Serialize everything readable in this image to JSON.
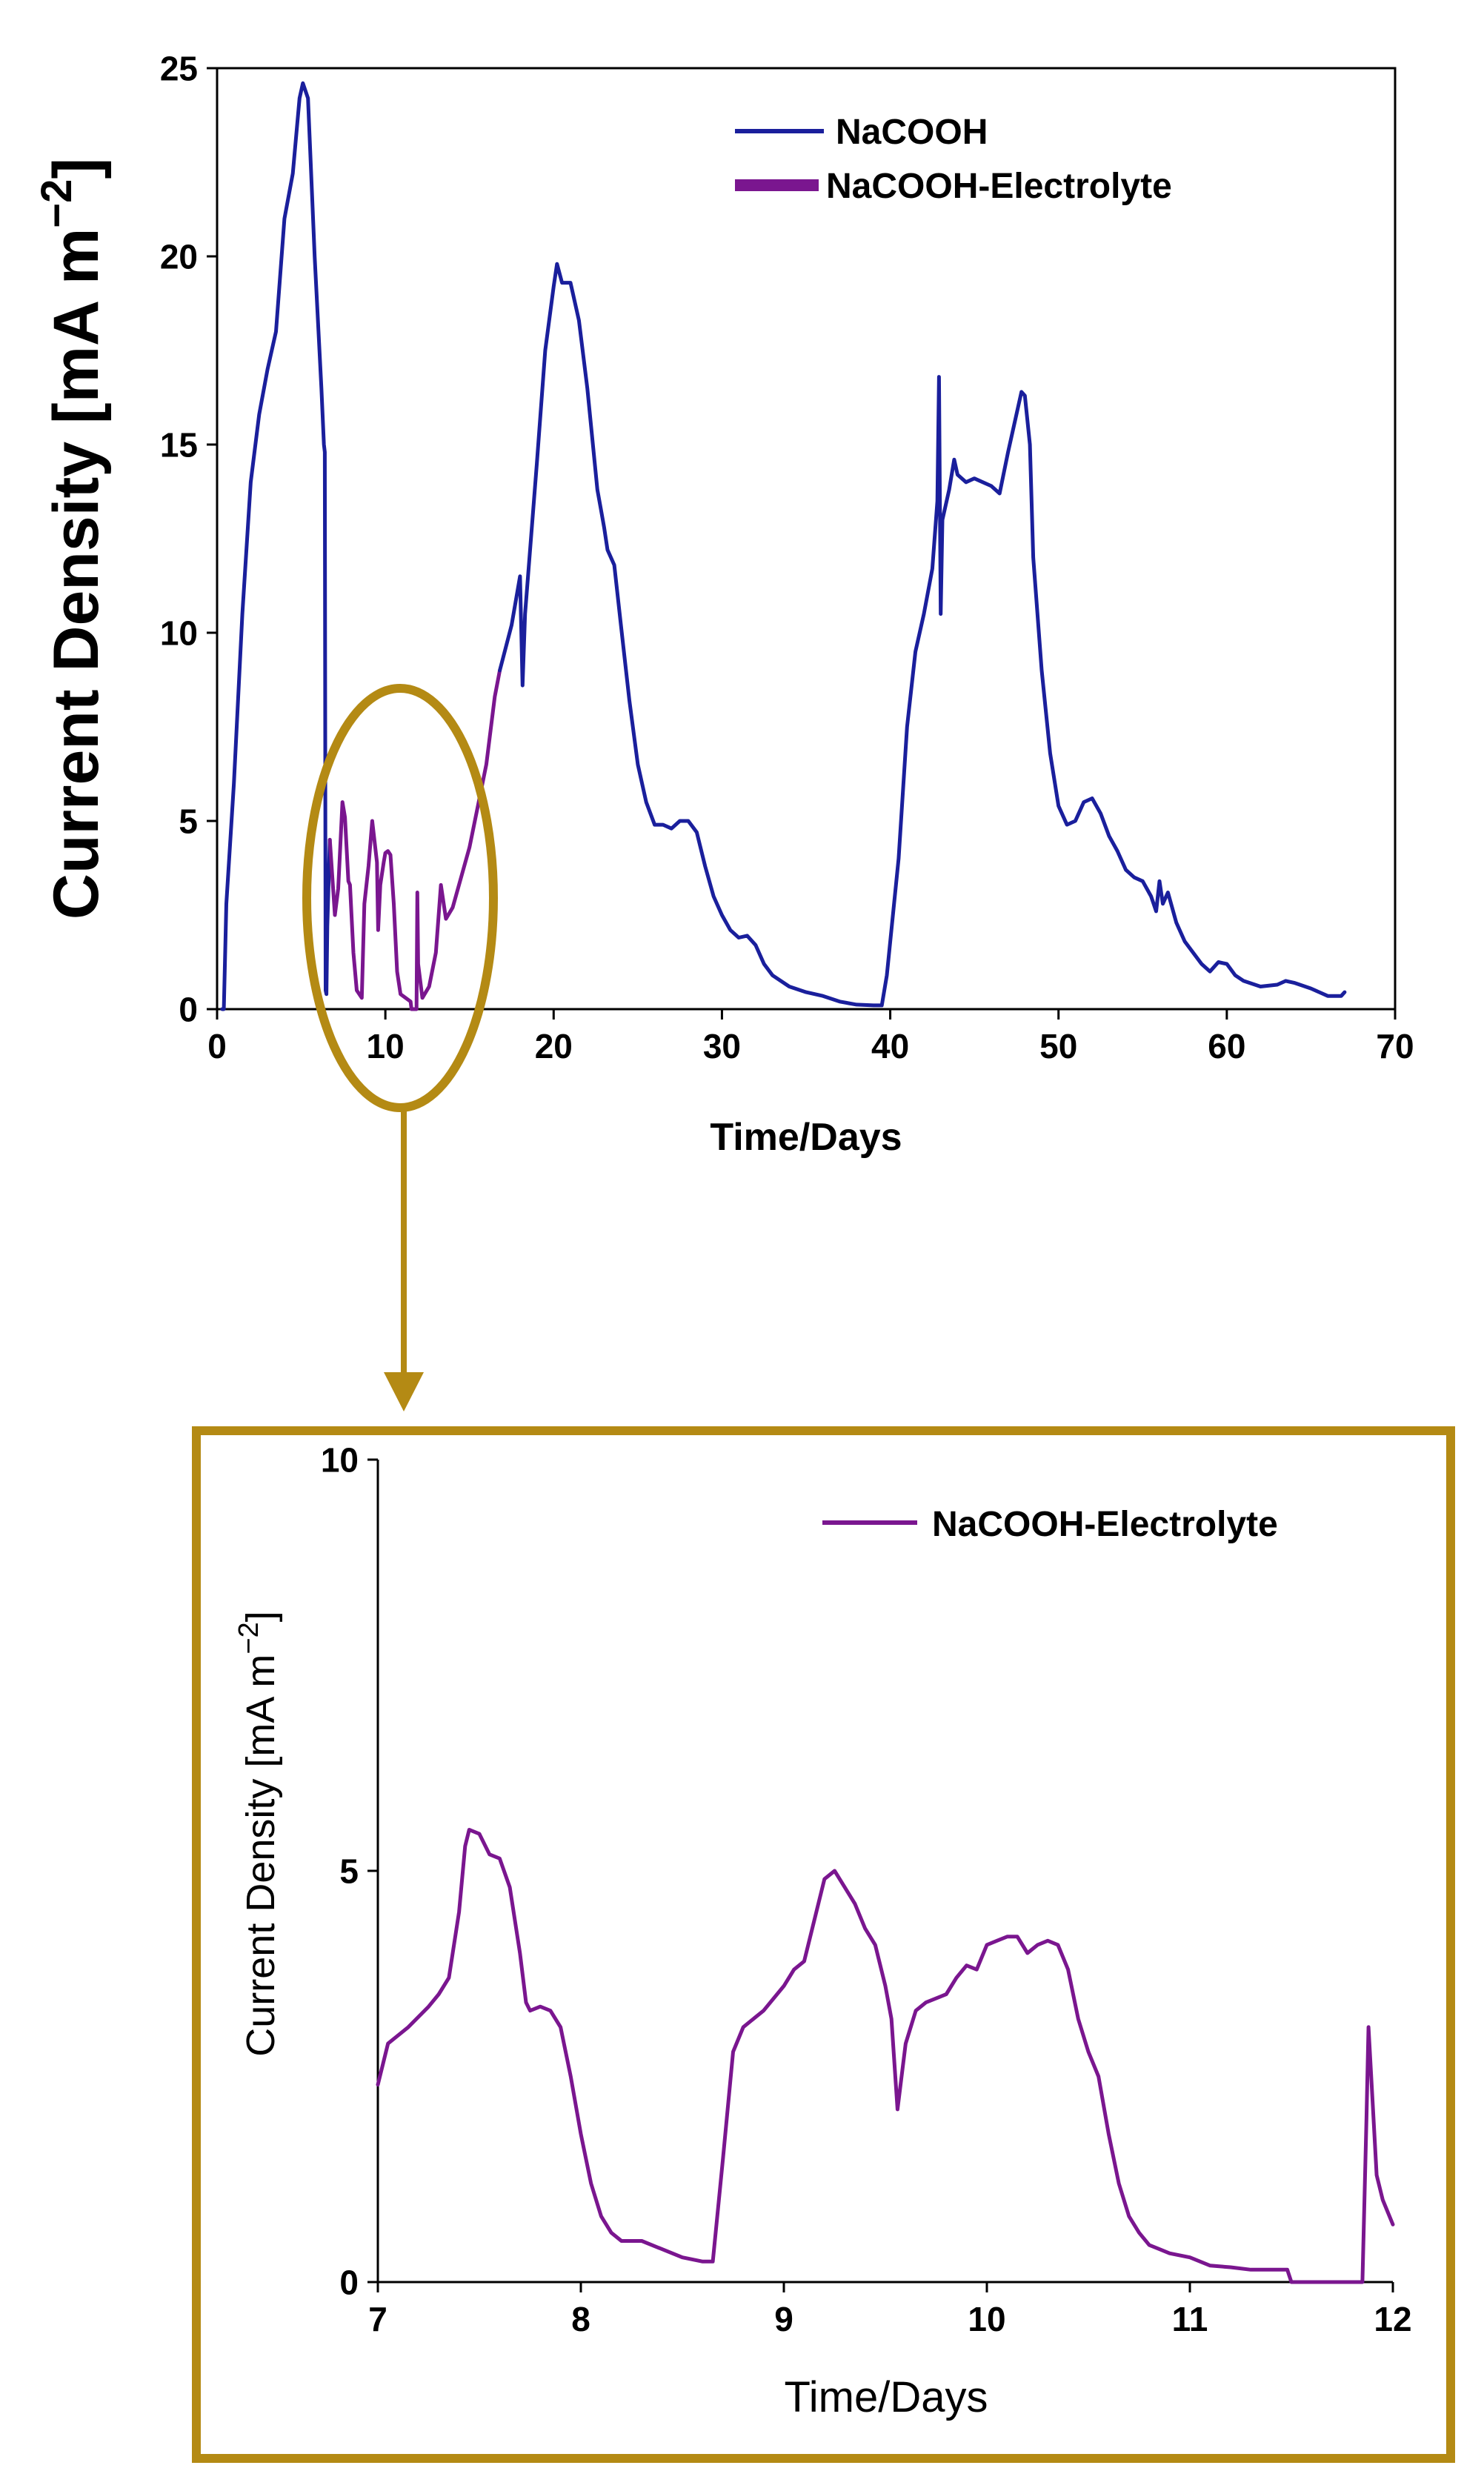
{
  "colors": {
    "nacooh": "#1a1f9c",
    "electrolyte": "#7a168f",
    "callout": "#b48a14",
    "axis": "#000000"
  },
  "chart_data": [
    {
      "type": "line",
      "xlabel": "Time/Days",
      "ylabel": "Current Density [mA m",
      "ylabel_exp": "−2",
      "ylabel_close": "]",
      "xlim": [
        0,
        70
      ],
      "ylim": [
        0,
        25
      ],
      "x_ticks": [
        0,
        10,
        20,
        30,
        40,
        50,
        60,
        70
      ],
      "y_ticks": [
        0,
        5,
        10,
        15,
        20,
        25
      ],
      "legend": "top-right",
      "series": [
        {
          "name": "NaCOOH",
          "points": [
            [
              0.3,
              0
            ],
            [
              0.4,
              0
            ],
            [
              0.55,
              2.8
            ],
            [
              1,
              6
            ],
            [
              1.5,
              10.5
            ],
            [
              2,
              14
            ],
            [
              2.5,
              15.8
            ],
            [
              3,
              17
            ],
            [
              3.5,
              18
            ],
            [
              4,
              21
            ],
            [
              4.5,
              22.2
            ],
            [
              4.9,
              24.2
            ],
            [
              5.1,
              24.6
            ],
            [
              5.4,
              24.2
            ],
            [
              5.8,
              20
            ],
            [
              6.2,
              16.5
            ],
            [
              6.35,
              15
            ],
            [
              6.4,
              14.8
            ],
            [
              6.45,
              0.5
            ],
            [
              6.5,
              0.4
            ],
            [
              6.55,
              2.2
            ],
            [
              6.7,
              4.5
            ]
          ]
        },
        {
          "name": "NaCOOH-Electrolyte",
          "points": [
            [
              6.7,
              4.5
            ],
            [
              7,
              2.5
            ],
            [
              7.2,
              3.2
            ],
            [
              7.45,
              5.5
            ],
            [
              7.6,
              5.1
            ],
            [
              7.8,
              3.4
            ],
            [
              7.9,
              3.3
            ],
            [
              8.1,
              1.5
            ],
            [
              8.3,
              0.5
            ],
            [
              8.6,
              0.3
            ],
            [
              8.75,
              2.8
            ],
            [
              9,
              3.8
            ],
            [
              9.22,
              5
            ],
            [
              9.5,
              3.9
            ],
            [
              9.57,
              2.1
            ],
            [
              9.7,
              3.3
            ],
            [
              9.9,
              3.9
            ],
            [
              10,
              4.15
            ],
            [
              10.15,
              4.2
            ],
            [
              10.3,
              4.1
            ],
            [
              10.5,
              2.8
            ],
            [
              10.7,
              1
            ],
            [
              10.9,
              0.4
            ],
            [
              11.5,
              0.2
            ],
            [
              11.55,
              0
            ],
            [
              11.85,
              0
            ],
            [
              11.9,
              3.1
            ],
            [
              11.95,
              1.2
            ],
            [
              12.2,
              0.3
            ],
            [
              12.6,
              0.6
            ],
            [
              13,
              1.5
            ],
            [
              13.3,
              3.3
            ],
            [
              13.6,
              2.4
            ],
            [
              14,
              2.7
            ],
            [
              15,
              4.3
            ],
            [
              16,
              6.5
            ],
            [
              16.5,
              8.3
            ],
            [
              16.8,
              9
            ]
          ]
        },
        {
          "name": "NaCOOH",
          "points": [
            [
              16.8,
              9
            ],
            [
              17.5,
              10.2
            ],
            [
              18,
              11.5
            ],
            [
              18.15,
              8.6
            ],
            [
              18.3,
              10.5
            ],
            [
              19,
              14.5
            ],
            [
              19.5,
              17.5
            ],
            [
              20,
              19.2
            ],
            [
              20.2,
              19.8
            ],
            [
              20.5,
              19.3
            ],
            [
              21,
              19.3
            ],
            [
              21.5,
              18.3
            ],
            [
              22,
              16.5
            ],
            [
              22.6,
              13.8
            ],
            [
              22.8,
              13.3
            ],
            [
              23,
              12.8
            ],
            [
              23.2,
              12.2
            ],
            [
              23.6,
              11.8
            ],
            [
              24,
              10.2
            ],
            [
              24.5,
              8.2
            ],
            [
              25,
              6.5
            ],
            [
              25.5,
              5.5
            ],
            [
              26,
              4.9
            ],
            [
              26.5,
              4.9
            ],
            [
              27,
              4.8
            ],
            [
              27.5,
              5
            ],
            [
              28,
              5
            ],
            [
              28.5,
              4.7
            ],
            [
              29,
              3.8
            ],
            [
              29.5,
              3
            ],
            [
              30,
              2.5
            ],
            [
              30.5,
              2.1
            ],
            [
              31,
              1.9
            ],
            [
              31.5,
              1.95
            ],
            [
              32,
              1.7
            ],
            [
              32.5,
              1.2
            ],
            [
              33,
              0.9
            ],
            [
              34,
              0.6
            ],
            [
              35,
              0.45
            ],
            [
              36,
              0.35
            ],
            [
              37,
              0.2
            ],
            [
              38,
              0.12
            ],
            [
              39,
              0.1
            ],
            [
              39.5,
              0.1
            ],
            [
              39.8,
              0.9
            ],
            [
              40,
              1.8
            ],
            [
              40.5,
              4
            ],
            [
              41,
              7.5
            ],
            [
              41.5,
              9.5
            ],
            [
              42,
              10.5
            ],
            [
              42.5,
              11.7
            ],
            [
              42.8,
              13.5
            ],
            [
              42.9,
              16.8
            ],
            [
              43,
              10.5
            ],
            [
              43.1,
              13
            ],
            [
              43.5,
              13.8
            ],
            [
              43.8,
              14.6
            ],
            [
              44,
              14.2
            ],
            [
              44.5,
              14
            ],
            [
              45,
              14.1
            ],
            [
              45.5,
              14
            ],
            [
              46,
              13.9
            ],
            [
              46.5,
              13.7
            ],
            [
              47,
              14.8
            ],
            [
              47.5,
              15.8
            ],
            [
              47.8,
              16.4
            ],
            [
              48,
              16.3
            ],
            [
              48.3,
              15
            ],
            [
              48.5,
              12
            ],
            [
              49,
              9
            ],
            [
              49.5,
              6.8
            ],
            [
              50,
              5.4
            ],
            [
              50.5,
              4.9
            ],
            [
              51,
              5
            ],
            [
              51.5,
              5.5
            ],
            [
              52,
              5.6
            ],
            [
              52.5,
              5.2
            ],
            [
              53,
              4.6
            ],
            [
              53.5,
              4.2
            ],
            [
              54,
              3.7
            ],
            [
              54.5,
              3.5
            ],
            [
              55,
              3.4
            ],
            [
              55.5,
              3
            ],
            [
              55.8,
              2.6
            ],
            [
              56,
              3.4
            ],
            [
              56.2,
              2.8
            ],
            [
              56.5,
              3.1
            ],
            [
              57,
              2.3
            ],
            [
              57.5,
              1.8
            ],
            [
              58,
              1.5
            ],
            [
              58.5,
              1.2
            ],
            [
              59,
              1
            ],
            [
              59.5,
              1.25
            ],
            [
              60,
              1.2
            ],
            [
              60.5,
              0.9
            ],
            [
              61,
              0.75
            ],
            [
              62,
              0.6
            ],
            [
              63,
              0.65
            ],
            [
              63.5,
              0.75
            ],
            [
              64,
              0.7
            ],
            [
              65,
              0.55
            ],
            [
              66,
              0.35
            ],
            [
              66.8,
              0.35
            ],
            [
              67,
              0.45
            ]
          ]
        }
      ],
      "legend_entries": [
        {
          "label": "NaCOOH",
          "color": "#1a1f9c"
        },
        {
          "label": "NaCOOH-Electrolyte",
          "color": "#7a168f"
        }
      ]
    },
    {
      "type": "line",
      "xlabel": "Time/Days",
      "ylabel": "Current Density [mA m",
      "ylabel_exp": "−2",
      "ylabel_close": "]",
      "xlim": [
        7,
        12
      ],
      "ylim": [
        0,
        10
      ],
      "x_ticks": [
        7,
        8,
        9,
        10,
        11,
        12
      ],
      "y_ticks": [
        0,
        5,
        10
      ],
      "legend": "top-right",
      "series": [
        {
          "name": "NaCOOH-Electrolyte",
          "points": [
            [
              7,
              2.4
            ],
            [
              7.05,
              2.9
            ],
            [
              7.15,
              3.1
            ],
            [
              7.25,
              3.35
            ],
            [
              7.3,
              3.5
            ],
            [
              7.35,
              3.7
            ],
            [
              7.4,
              4.5
            ],
            [
              7.43,
              5.3
            ],
            [
              7.45,
              5.5
            ],
            [
              7.5,
              5.45
            ],
            [
              7.55,
              5.2
            ],
            [
              7.6,
              5.15
            ],
            [
              7.65,
              4.8
            ],
            [
              7.7,
              4
            ],
            [
              7.73,
              3.4
            ],
            [
              7.75,
              3.3
            ],
            [
              7.8,
              3.35
            ],
            [
              7.85,
              3.3
            ],
            [
              7.9,
              3.1
            ],
            [
              7.95,
              2.5
            ],
            [
              8,
              1.8
            ],
            [
              8.05,
              1.2
            ],
            [
              8.1,
              0.8
            ],
            [
              8.15,
              0.6
            ],
            [
              8.2,
              0.5
            ],
            [
              8.3,
              0.5
            ],
            [
              8.4,
              0.4
            ],
            [
              8.5,
              0.3
            ],
            [
              8.6,
              0.25
            ],
            [
              8.65,
              0.25
            ],
            [
              8.7,
              1.5
            ],
            [
              8.75,
              2.8
            ],
            [
              8.8,
              3.1
            ],
            [
              8.9,
              3.3
            ],
            [
              9,
              3.6
            ],
            [
              9.05,
              3.8
            ],
            [
              9.1,
              3.9
            ],
            [
              9.15,
              4.4
            ],
            [
              9.2,
              4.9
            ],
            [
              9.25,
              5
            ],
            [
              9.3,
              4.8
            ],
            [
              9.35,
              4.6
            ],
            [
              9.4,
              4.3
            ],
            [
              9.45,
              4.1
            ],
            [
              9.5,
              3.6
            ],
            [
              9.53,
              3.2
            ],
            [
              9.56,
              2.1
            ],
            [
              9.6,
              2.9
            ],
            [
              9.65,
              3.3
            ],
            [
              9.7,
              3.4
            ],
            [
              9.75,
              3.45
            ],
            [
              9.8,
              3.5
            ],
            [
              9.85,
              3.7
            ],
            [
              9.9,
              3.85
            ],
            [
              9.95,
              3.8
            ],
            [
              10,
              4.1
            ],
            [
              10.05,
              4.15
            ],
            [
              10.1,
              4.2
            ],
            [
              10.15,
              4.2
            ],
            [
              10.2,
              4
            ],
            [
              10.25,
              4.1
            ],
            [
              10.3,
              4.15
            ],
            [
              10.35,
              4.1
            ],
            [
              10.4,
              3.8
            ],
            [
              10.45,
              3.2
            ],
            [
              10.5,
              2.8
            ],
            [
              10.55,
              2.5
            ],
            [
              10.6,
              1.8
            ],
            [
              10.65,
              1.2
            ],
            [
              10.7,
              0.8
            ],
            [
              10.75,
              0.6
            ],
            [
              10.8,
              0.45
            ],
            [
              10.85,
              0.4
            ],
            [
              10.9,
              0.35
            ],
            [
              11,
              0.3
            ],
            [
              11.1,
              0.2
            ],
            [
              11.2,
              0.18
            ],
            [
              11.3,
              0.15
            ],
            [
              11.4,
              0.15
            ],
            [
              11.48,
              0.15
            ],
            [
              11.5,
              0
            ],
            [
              11.85,
              0
            ],
            [
              11.87,
              2
            ],
            [
              11.88,
              3.1
            ],
            [
              11.9,
              2.2
            ],
            [
              11.92,
              1.3
            ],
            [
              11.95,
              1
            ],
            [
              12,
              0.7
            ]
          ]
        }
      ],
      "legend_entries": [
        {
          "label": "NaCOOH-Electrolyte",
          "color": "#7a168f"
        }
      ]
    }
  ]
}
